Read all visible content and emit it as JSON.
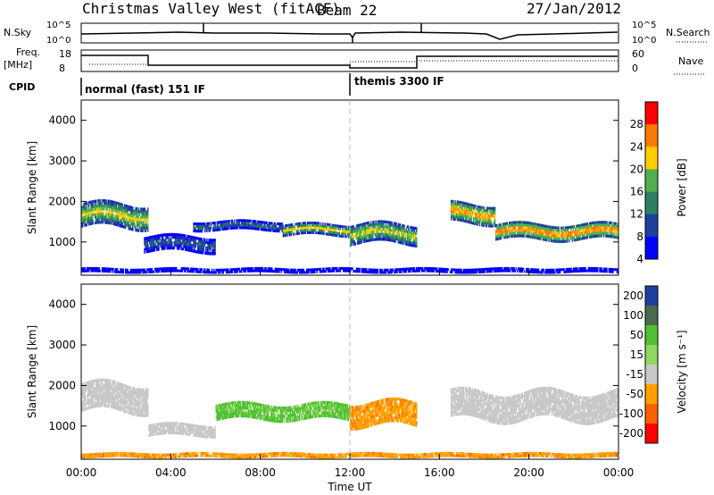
{
  "header": {
    "title": "Christmas Valley West (fitACF)",
    "beam": "Beam 22",
    "date": "27/Jan/2012"
  },
  "status_panel": {
    "nsky_label": "N.Sky",
    "nsky_ticks": [
      "10^5",
      "10^0"
    ],
    "nsearch_label": "N.Search",
    "nsearch_ticks": [
      "10^5",
      "10^0"
    ],
    "freq_label": "Freq.",
    "freq_unit": "[MHz]",
    "freq_ticks": [
      "18",
      "8"
    ],
    "nave_label": "Nave",
    "nave_ticks": [
      "60",
      "0"
    ],
    "cpid_label": "CPID",
    "cpid_segments": [
      {
        "start_hour": 0,
        "label": "normal (fast) 151 IF"
      },
      {
        "start_hour": 12,
        "label": "themis 3300 IF"
      }
    ]
  },
  "chart_data": [
    {
      "type": "heatmap",
      "title": "Power",
      "ylabel": "Slant Range [km]",
      "xlabel": "",
      "colorbar_label": "Power [dB]",
      "colorbar_ticks": [
        "28",
        "24",
        "20",
        "16",
        "12",
        "8",
        "4"
      ],
      "colorbar_colors": [
        "#ff0000",
        "#ff7a00",
        "#ffcc00",
        "#50b050",
        "#2a8060",
        "#2040a0",
        "#0000ff"
      ],
      "y_ticks": [
        "4000",
        "3000",
        "2000",
        "1000"
      ],
      "ylim": [
        180,
        4500
      ],
      "xlim": [
        0,
        24
      ],
      "grid": false,
      "echo_bands": [
        {
          "t0": 0.0,
          "t1": 3.0,
          "r_center": 1650,
          "r_half": 300,
          "level": 20
        },
        {
          "t0": 2.8,
          "t1": 6.0,
          "r_center": 950,
          "r_half": 200,
          "level": 10
        },
        {
          "t0": 5.0,
          "t1": 9.0,
          "r_center": 1400,
          "r_half": 120,
          "level": 12
        },
        {
          "t0": 9.0,
          "t1": 12.0,
          "r_center": 1300,
          "r_half": 150,
          "level": 20
        },
        {
          "t0": 12.0,
          "t1": 15.0,
          "r_center": 1200,
          "r_half": 250,
          "level": 20
        },
        {
          "t0": 16.5,
          "t1": 18.5,
          "r_center": 1700,
          "r_half": 250,
          "level": 24
        },
        {
          "t0": 18.5,
          "t1": 24.0,
          "r_center": 1250,
          "r_half": 200,
          "level": 26
        },
        {
          "t0": 0.0,
          "t1": 24.0,
          "r_center": 300,
          "r_half": 60,
          "level": 6
        }
      ]
    },
    {
      "type": "heatmap",
      "title": "Velocity",
      "ylabel": "Slant Range [km]",
      "xlabel": "Time UT",
      "colorbar_label": "Velocity [m s⁻¹]",
      "colorbar_ticks": [
        "200",
        "100",
        "50",
        "15",
        "-15",
        "-50",
        "-100",
        "-200"
      ],
      "colorbar_colors": [
        "#2040a0",
        "#4a6a4a",
        "#50c030",
        "#8fd860",
        "#c8c8c8",
        "#ffa000",
        "#ff6000",
        "#ff0000"
      ],
      "y_ticks": [
        "4000",
        "3000",
        "2000",
        "1000"
      ],
      "x_ticks": [
        "00:00",
        "04:00",
        "08:00",
        "12:00",
        "16:00",
        "20:00",
        "00:00"
      ],
      "ylim": [
        180,
        4500
      ],
      "xlim": [
        0,
        24
      ],
      "grid": false,
      "echo_bands": [
        {
          "t0": 0.0,
          "t1": 3.0,
          "r_center": 1700,
          "r_half": 350,
          "level": 0
        },
        {
          "t0": 3.0,
          "t1": 6.0,
          "r_center": 900,
          "r_half": 150,
          "level": 0
        },
        {
          "t0": 6.0,
          "t1": 12.0,
          "r_center": 1350,
          "r_half": 200,
          "level": 40
        },
        {
          "t0": 12.0,
          "t1": 15.0,
          "r_center": 1300,
          "r_half": 300,
          "level": -40
        },
        {
          "t0": 16.5,
          "t1": 24.0,
          "r_center": 1500,
          "r_half": 350,
          "level": 0
        },
        {
          "t0": 0.0,
          "t1": 24.0,
          "r_center": 280,
          "r_half": 60,
          "level": -40
        }
      ]
    }
  ]
}
